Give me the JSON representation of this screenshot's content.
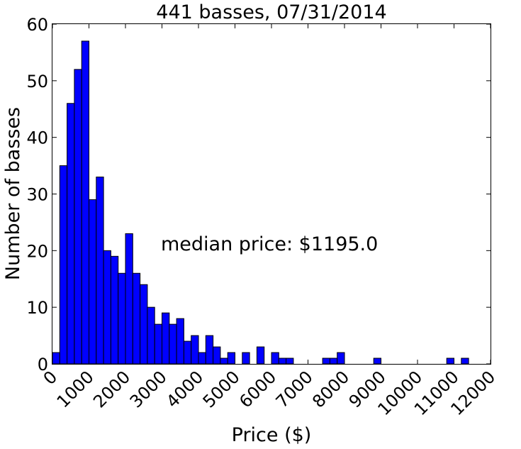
{
  "chart_data": {
    "type": "bar",
    "title": "441 basses, 07/31/2014",
    "xlabel": "Price ($)",
    "ylabel": "Number of basses",
    "annotation": "median price: $1195.0",
    "xlim": [
      0,
      12000
    ],
    "ylim": [
      0,
      60
    ],
    "xticks": [
      0,
      1000,
      2000,
      3000,
      4000,
      5000,
      6000,
      7000,
      8000,
      9000,
      10000,
      11000,
      12000
    ],
    "yticks": [
      0,
      10,
      20,
      30,
      40,
      50,
      60
    ],
    "xtick_labels": [
      "0",
      "1000",
      "2000",
      "3000",
      "4000",
      "5000",
      "6000",
      "7000",
      "8000",
      "9000",
      "10000",
      "11000",
      "12000"
    ],
    "ytick_labels": [
      "0",
      "10",
      "20",
      "30",
      "40",
      "50",
      "60"
    ],
    "bin_width": 200,
    "bin_start": 0,
    "values": [
      2,
      35,
      46,
      52,
      57,
      29,
      33,
      20,
      19,
      16,
      23,
      16,
      14,
      10,
      7,
      9,
      7,
      8,
      4,
      5,
      2,
      5,
      3,
      1,
      2,
      0,
      2,
      0,
      3,
      0,
      2,
      1,
      1,
      0,
      0,
      0,
      0,
      1,
      1,
      2,
      0,
      0,
      0,
      0,
      1,
      0,
      0,
      0,
      0,
      0,
      0,
      0,
      0,
      0,
      1,
      0,
      1
    ],
    "bar_color": "#0000ff",
    "grid": false
  }
}
